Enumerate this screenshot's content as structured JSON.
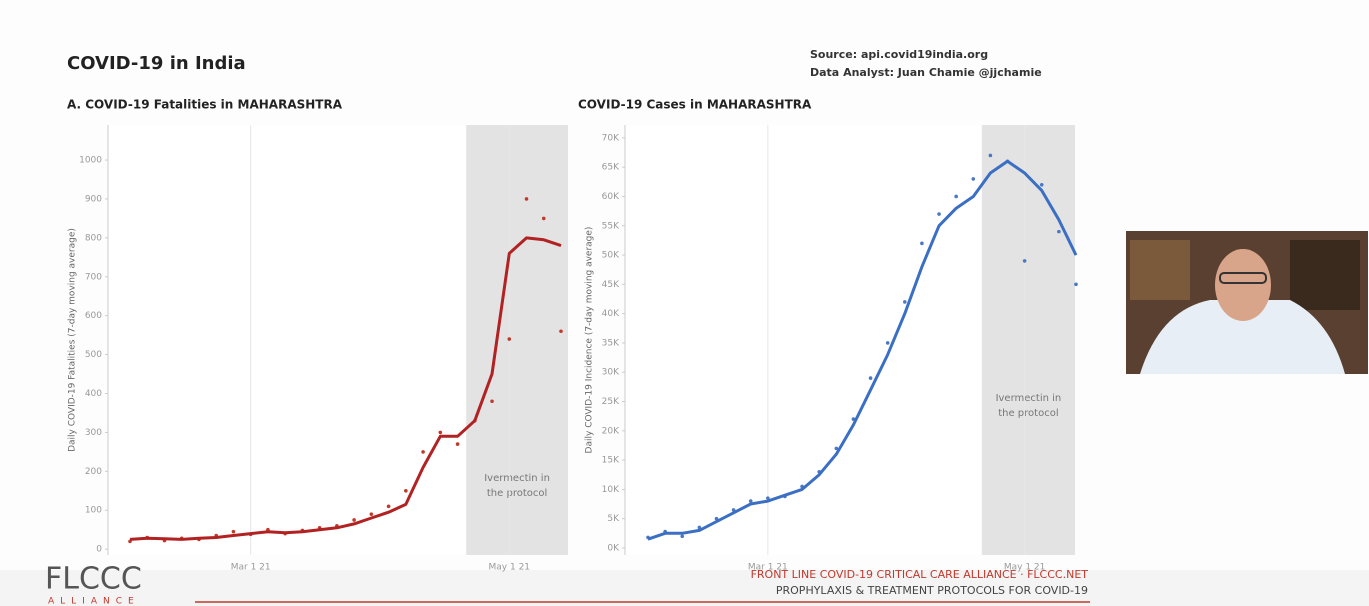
{
  "header": {
    "title": "COVID-19 in India",
    "source": "Source: api.covid19india.org",
    "analyst": "Data Analyst:  Juan Chamie @jjchamie"
  },
  "footer": {
    "logo": "FLCCC",
    "logo_sub": "ALLIANCE",
    "line1": "FRONT LINE COVID-19 CRITICAL CARE ALLIANCE · FLCCC.NET",
    "line2": "PROPHYLAXIS & TREATMENT PROTOCOLS FOR COVID-19"
  },
  "chart_data": [
    {
      "type": "line",
      "title": "A. COVID-19 Fatalities in MAHARASHTRA",
      "y_label": "Daily COVID-19 Fatalities (7-day moving average)",
      "categories": [
        null,
        null,
        null,
        null,
        null,
        null,
        null,
        "Mar 1 21",
        null,
        null,
        null,
        null,
        null,
        null,
        null,
        null,
        null,
        null,
        null,
        null,
        null,
        null,
        "May 1 21",
        null,
        null,
        null
      ],
      "ylim": [
        -15,
        1090
      ],
      "yticks": [
        0,
        100,
        200,
        300,
        400,
        500,
        600,
        700,
        800,
        900,
        1000
      ],
      "grid": true,
      "annotation": {
        "text": [
          "Ivermectin in",
          "the protocol"
        ],
        "from": 20
      },
      "series": [
        {
          "kind": "scatter",
          "color": "#c0392b",
          "values": [
            20,
            30,
            22,
            28,
            25,
            35,
            45,
            38,
            50,
            40,
            48,
            55,
            60,
            75,
            90,
            110,
            150,
            250,
            300,
            270,
            330,
            380,
            540,
            900,
            850,
            560
          ]
        },
        {
          "kind": "line",
          "color": "#b22222",
          "values": [
            25,
            28,
            27,
            25,
            28,
            30,
            35,
            40,
            45,
            42,
            45,
            50,
            55,
            65,
            80,
            95,
            115,
            210,
            290,
            290,
            330,
            450,
            760,
            800,
            795,
            780
          ]
        }
      ]
    },
    {
      "type": "line",
      "title": "COVID-19 Cases in MAHARASHTRA",
      "y_label": "Daily COVID-19 Incidence (7-day moving average)",
      "categories": [
        null,
        null,
        null,
        null,
        null,
        null,
        null,
        "Mar 1 21",
        null,
        null,
        null,
        null,
        null,
        null,
        null,
        null,
        null,
        null,
        null,
        null,
        null,
        null,
        "May 1 21",
        null,
        null,
        null
      ],
      "ylim": [
        -1200,
        72200
      ],
      "yticks": [
        {
          "value": 0,
          "label": "0K"
        },
        {
          "value": 5000,
          "label": "5K"
        },
        {
          "value": 10000,
          "label": "10K"
        },
        {
          "value": 15000,
          "label": "15K"
        },
        {
          "value": 20000,
          "label": "20K"
        },
        {
          "value": 25000,
          "label": "25K"
        },
        {
          "value": 30000,
          "label": "30K"
        },
        {
          "value": 35000,
          "label": "35K"
        },
        {
          "value": 40000,
          "label": "40K"
        },
        {
          "value": 45000,
          "label": "45K"
        },
        {
          "value": 50000,
          "label": "50K"
        },
        {
          "value": 55000,
          "label": "55K"
        },
        {
          "value": 60000,
          "label": "60K"
        },
        {
          "value": 65000,
          "label": "65K"
        },
        {
          "value": 70000,
          "label": "70K"
        }
      ],
      "grid": true,
      "annotation": {
        "text": [
          "Ivermectin in",
          "the protocol"
        ],
        "from": 20
      },
      "series": [
        {
          "kind": "scatter",
          "color": "#4a78c2",
          "values": [
            1800,
            2800,
            2000,
            3500,
            5000,
            6500,
            8000,
            8500,
            8800,
            10500,
            13000,
            17000,
            22000,
            29000,
            35000,
            42000,
            52000,
            57000,
            60000,
            63000,
            67000,
            66000,
            49000,
            62000,
            54000,
            45000
          ]
        },
        {
          "kind": "line",
          "color": "#3a6fc4",
          "values": [
            1500,
            2500,
            2500,
            3000,
            4500,
            6000,
            7500,
            8000,
            9000,
            10000,
            12500,
            16000,
            21000,
            27000,
            33000,
            40000,
            48000,
            55000,
            58000,
            60000,
            64000,
            66000,
            64000,
            61000,
            56000,
            50000
          ]
        }
      ]
    }
  ]
}
